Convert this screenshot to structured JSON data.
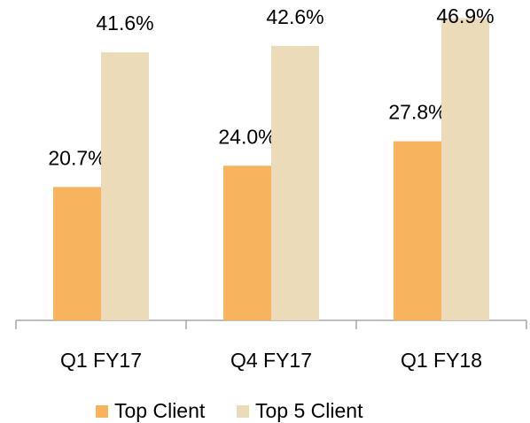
{
  "chart_data": {
    "type": "bar",
    "categories": [
      "Q1 FY17",
      "Q4 FY17",
      "Q1 FY18"
    ],
    "series": [
      {
        "name": "Top Client",
        "color": "#f8b35e",
        "values": [
          20.7,
          24.0,
          27.8
        ],
        "value_labels": [
          "20.7%",
          "24.0%",
          "27.8%"
        ]
      },
      {
        "name": "Top 5 Client",
        "color": "#ecdbb9",
        "values": [
          41.6,
          42.6,
          46.9
        ],
        "value_labels": [
          "41.6%",
          "42.6%",
          "46.9%"
        ]
      }
    ],
    "legend": "bottom"
  }
}
